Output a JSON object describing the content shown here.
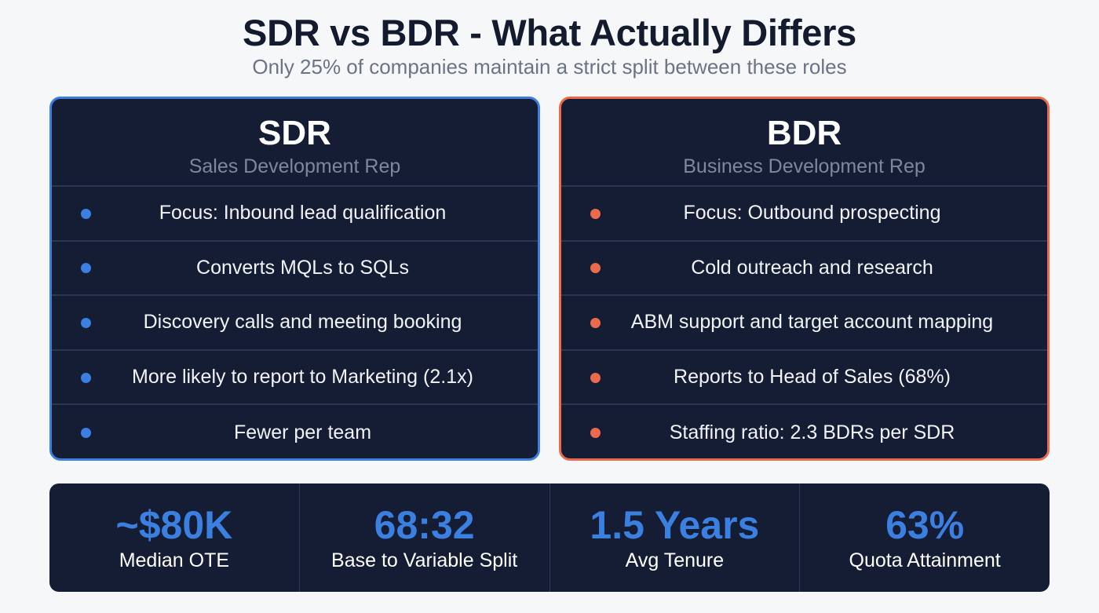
{
  "header": {
    "title": "SDR vs BDR - What Actually Differs",
    "subtitle": "Only 25% of companies maintain a strict split between these roles"
  },
  "colors": {
    "sdr_accent": "#3b7fe0",
    "bdr_accent": "#ec6a4c",
    "card_bg": "#141d33"
  },
  "sdr": {
    "title": "SDR",
    "subtitle": "Sales Development Rep",
    "items": [
      "Focus: Inbound lead qualification",
      "Converts MQLs to SQLs",
      "Discovery calls and meeting booking",
      "More likely to report to Marketing (2.1x)",
      "Fewer per team"
    ]
  },
  "bdr": {
    "title": "BDR",
    "subtitle": "Business Development Rep",
    "items": [
      "Focus: Outbound prospecting",
      "Cold outreach and research",
      "ABM support and target account mapping",
      "Reports to Head of Sales (68%)",
      "Staffing ratio: 2.3 BDRs per SDR"
    ]
  },
  "stats": [
    {
      "value": "~$80K",
      "label": "Median OTE"
    },
    {
      "value": "68:32",
      "label": "Base to Variable Split"
    },
    {
      "value": "1.5 Years",
      "label": "Avg Tenure"
    },
    {
      "value": "63%",
      "label": "Quota Attainment"
    }
  ]
}
